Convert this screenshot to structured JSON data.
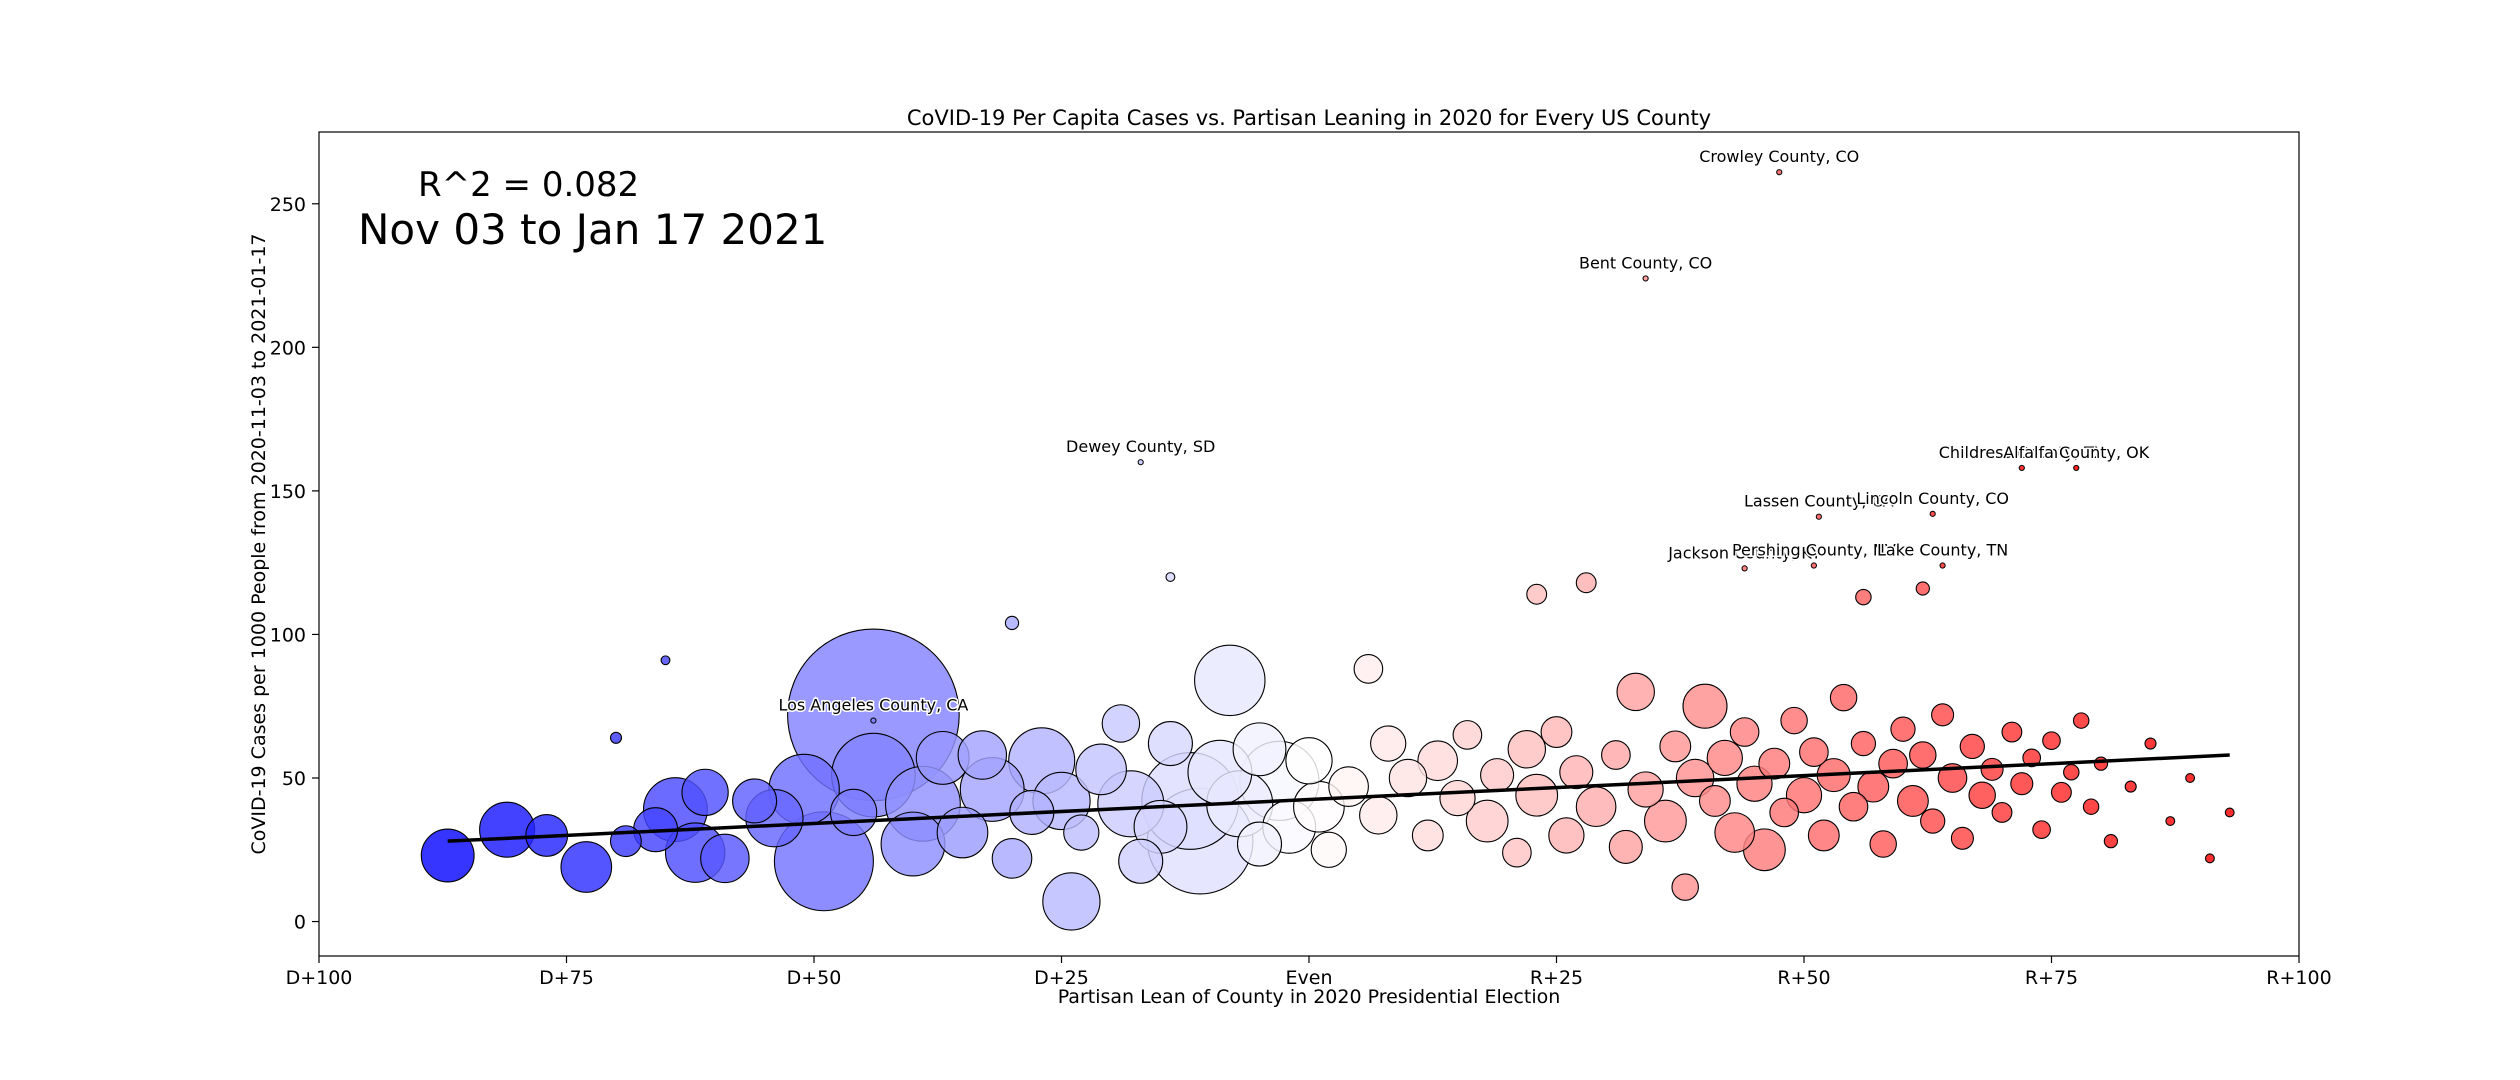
{
  "chart_data": {
    "type": "scatter",
    "title": "CoVID-19 Per Capita Cases vs. Partisan Leaning in 2020 for Every US County",
    "xlabel": "Partisan Lean of County in 2020 Presidential Election",
    "ylabel": "CoVID-19 Cases per 1000 People from 2020-11-03 to 2021-01-17",
    "xlim": [
      -100,
      100
    ],
    "ylim": [
      -12,
      275
    ],
    "x_ticks": [
      {
        "value": -100,
        "label": "D+100"
      },
      {
        "value": -75,
        "label": "D+75"
      },
      {
        "value": -50,
        "label": "D+50"
      },
      {
        "value": -25,
        "label": "D+25"
      },
      {
        "value": 0,
        "label": "Even"
      },
      {
        "value": 25,
        "label": "R+25"
      },
      {
        "value": 50,
        "label": "R+50"
      },
      {
        "value": 75,
        "label": "R+75"
      },
      {
        "value": 100,
        "label": "R+100"
      }
    ],
    "y_ticks": [
      0,
      50,
      100,
      150,
      200,
      250
    ],
    "grid": false,
    "r_squared_text": "R^2 = 0.082",
    "date_range_text": "Nov 03 to Jan 17 2021",
    "date_range_color": "#008000",
    "color_scale": {
      "democratic": "#0000ff",
      "even": "#ffffff",
      "republican": "#ff0000"
    },
    "trend_line": {
      "x": [
        -87,
        93
      ],
      "y": [
        28,
        58
      ],
      "color": "#000000"
    },
    "labeled_points": [
      {
        "label": "Crowley County, CO",
        "x": 47.5,
        "y": 261
      },
      {
        "label": "Bent County, CO",
        "x": 34,
        "y": 224
      },
      {
        "label": "Dewey County, SD",
        "x": -17,
        "y": 160
      },
      {
        "label": "Childress County, TX",
        "x": 72,
        "y": 158
      },
      {
        "label": "Alfalfa County, OK",
        "x": 77.5,
        "y": 158
      },
      {
        "label": "Lassen County, CA",
        "x": 51.5,
        "y": 141
      },
      {
        "label": "Lincoln County, CO",
        "x": 63,
        "y": 142
      },
      {
        "label": "Jackson County, KY",
        "x": 44,
        "y": 123
      },
      {
        "label": "Pershing County, NV",
        "x": 51,
        "y": 124
      },
      {
        "label": "Lake County, TN",
        "x": 64,
        "y": 124
      },
      {
        "label": "Los Angeles County, CA",
        "x": -44,
        "y": 70
      }
    ],
    "points": [
      {
        "x": -87,
        "y": 23,
        "s": 2.4
      },
      {
        "x": -81,
        "y": 32,
        "s": 2.5
      },
      {
        "x": -77,
        "y": 30,
        "s": 1.9
      },
      {
        "x": -73,
        "y": 19,
        "s": 2.3
      },
      {
        "x": -69,
        "y": 28,
        "s": 1.4
      },
      {
        "x": -66,
        "y": 32,
        "s": 2.0
      },
      {
        "x": -64,
        "y": 39,
        "s": 2.9
      },
      {
        "x": -61,
        "y": 45,
        "s": 2.1
      },
      {
        "x": -62,
        "y": 24,
        "s": 2.7
      },
      {
        "x": -59,
        "y": 22,
        "s": 2.2
      },
      {
        "x": -56,
        "y": 42,
        "s": 2.0
      },
      {
        "x": -54,
        "y": 36,
        "s": 2.6
      },
      {
        "x": -51,
        "y": 46,
        "s": 3.2
      },
      {
        "x": -49,
        "y": 21,
        "s": 4.5
      },
      {
        "x": -46,
        "y": 38,
        "s": 2.1
      },
      {
        "x": -44,
        "y": 51,
        "s": 3.8
      },
      {
        "x": -44,
        "y": 72,
        "s": 7.8
      },
      {
        "x": -40,
        "y": 27,
        "s": 2.9
      },
      {
        "x": -39,
        "y": 41,
        "s": 3.4
      },
      {
        "x": -37,
        "y": 57,
        "s": 2.4
      },
      {
        "x": -35,
        "y": 31,
        "s": 2.3
      },
      {
        "x": -33,
        "y": 58,
        "s": 2.2
      },
      {
        "x": -32,
        "y": 46,
        "s": 2.9
      },
      {
        "x": -30,
        "y": 22,
        "s": 1.8
      },
      {
        "x": -28,
        "y": 38,
        "s": 2.0
      },
      {
        "x": -27,
        "y": 56,
        "s": 3.0
      },
      {
        "x": -25,
        "y": 42,
        "s": 2.6
      },
      {
        "x": -24,
        "y": 7,
        "s": 2.6
      },
      {
        "x": -23,
        "y": 31,
        "s": 1.6
      },
      {
        "x": -21,
        "y": 53,
        "s": 2.3
      },
      {
        "x": -19,
        "y": 69,
        "s": 1.7
      },
      {
        "x": -18,
        "y": 41,
        "s": 3.0
      },
      {
        "x": -17,
        "y": 21,
        "s": 2.0
      },
      {
        "x": -15,
        "y": 33,
        "s": 2.4
      },
      {
        "x": -14,
        "y": 62,
        "s": 2.0
      },
      {
        "x": -12,
        "y": 42,
        "s": 4.4
      },
      {
        "x": -11,
        "y": 28,
        "s": 4.8
      },
      {
        "x": -9,
        "y": 52,
        "s": 2.9
      },
      {
        "x": -8,
        "y": 84,
        "s": 3.2
      },
      {
        "x": -7,
        "y": 41,
        "s": 3.0
      },
      {
        "x": -5,
        "y": 60,
        "s": 2.4
      },
      {
        "x": -5,
        "y": 27,
        "s": 2.0
      },
      {
        "x": -3,
        "y": 49,
        "s": 3.6
      },
      {
        "x": -2,
        "y": 33,
        "s": 2.4
      },
      {
        "x": 0,
        "y": 56,
        "s": 2.1
      },
      {
        "x": 1,
        "y": 40,
        "s": 2.3
      },
      {
        "x": 2,
        "y": 25,
        "s": 1.6
      },
      {
        "x": 4,
        "y": 47,
        "s": 1.8
      },
      {
        "x": 6,
        "y": 88,
        "s": 1.3
      },
      {
        "x": 7,
        "y": 37,
        "s": 1.7
      },
      {
        "x": 8,
        "y": 62,
        "s": 1.6
      },
      {
        "x": 10,
        "y": 50,
        "s": 1.7
      },
      {
        "x": 12,
        "y": 30,
        "s": 1.4
      },
      {
        "x": 13,
        "y": 56,
        "s": 1.8
      },
      {
        "x": 15,
        "y": 43,
        "s": 1.6
      },
      {
        "x": 16,
        "y": 65,
        "s": 1.3
      },
      {
        "x": 18,
        "y": 35,
        "s": 1.9
      },
      {
        "x": 19,
        "y": 51,
        "s": 1.5
      },
      {
        "x": 21,
        "y": 24,
        "s": 1.3
      },
      {
        "x": 22,
        "y": 60,
        "s": 1.7
      },
      {
        "x": 23,
        "y": 44,
        "s": 1.9
      },
      {
        "x": 25,
        "y": 66,
        "s": 1.4
      },
      {
        "x": 26,
        "y": 30,
        "s": 1.6
      },
      {
        "x": 27,
        "y": 52,
        "s": 1.5
      },
      {
        "x": 29,
        "y": 40,
        "s": 1.8
      },
      {
        "x": 31,
        "y": 58,
        "s": 1.3
      },
      {
        "x": 32,
        "y": 26,
        "s": 1.5
      },
      {
        "x": 33,
        "y": 80,
        "s": 1.7
      },
      {
        "x": 34,
        "y": 46,
        "s": 1.6
      },
      {
        "x": 36,
        "y": 35,
        "s": 1.9
      },
      {
        "x": 37,
        "y": 61,
        "s": 1.4
      },
      {
        "x": 38,
        "y": 12,
        "s": 1.2
      },
      {
        "x": 39,
        "y": 50,
        "s": 1.7
      },
      {
        "x": 40,
        "y": 75,
        "s": 2.0
      },
      {
        "x": 41,
        "y": 42,
        "s": 1.4
      },
      {
        "x": 42,
        "y": 57,
        "s": 1.6
      },
      {
        "x": 43,
        "y": 31,
        "s": 1.8
      },
      {
        "x": 44,
        "y": 66,
        "s": 1.3
      },
      {
        "x": 45,
        "y": 48,
        "s": 1.6
      },
      {
        "x": 46,
        "y": 25,
        "s": 1.9
      },
      {
        "x": 47,
        "y": 55,
        "s": 1.4
      },
      {
        "x": 48,
        "y": 38,
        "s": 1.3
      },
      {
        "x": 49,
        "y": 70,
        "s": 1.2
      },
      {
        "x": 50,
        "y": 44,
        "s": 1.6
      },
      {
        "x": 51,
        "y": 59,
        "s": 1.3
      },
      {
        "x": 52,
        "y": 30,
        "s": 1.4
      },
      {
        "x": 53,
        "y": 51,
        "s": 1.5
      },
      {
        "x": 54,
        "y": 78,
        "s": 1.2
      },
      {
        "x": 55,
        "y": 40,
        "s": 1.3
      },
      {
        "x": 56,
        "y": 62,
        "s": 1.1
      },
      {
        "x": 57,
        "y": 47,
        "s": 1.4
      },
      {
        "x": 58,
        "y": 27,
        "s": 1.2
      },
      {
        "x": 59,
        "y": 55,
        "s": 1.3
      },
      {
        "x": 60,
        "y": 67,
        "s": 1.1
      },
      {
        "x": 61,
        "y": 42,
        "s": 1.4
      },
      {
        "x": 62,
        "y": 58,
        "s": 1.2
      },
      {
        "x": 63,
        "y": 35,
        "s": 1.1
      },
      {
        "x": 64,
        "y": 72,
        "s": 1.0
      },
      {
        "x": 65,
        "y": 50,
        "s": 1.3
      },
      {
        "x": 66,
        "y": 29,
        "s": 1.0
      },
      {
        "x": 67,
        "y": 61,
        "s": 1.1
      },
      {
        "x": 68,
        "y": 44,
        "s": 1.2
      },
      {
        "x": 69,
        "y": 53,
        "s": 1.0
      },
      {
        "x": 70,
        "y": 38,
        "s": 0.9
      },
      {
        "x": 71,
        "y": 66,
        "s": 0.9
      },
      {
        "x": 72,
        "y": 48,
        "s": 1.0
      },
      {
        "x": 73,
        "y": 57,
        "s": 0.8
      },
      {
        "x": 74,
        "y": 32,
        "s": 0.8
      },
      {
        "x": 75,
        "y": 63,
        "s": 0.8
      },
      {
        "x": 76,
        "y": 45,
        "s": 0.9
      },
      {
        "x": 77,
        "y": 52,
        "s": 0.7
      },
      {
        "x": 78,
        "y": 70,
        "s": 0.7
      },
      {
        "x": 79,
        "y": 40,
        "s": 0.7
      },
      {
        "x": 80,
        "y": 55,
        "s": 0.6
      },
      {
        "x": 81,
        "y": 28,
        "s": 0.6
      },
      {
        "x": 83,
        "y": 47,
        "s": 0.5
      },
      {
        "x": 85,
        "y": 62,
        "s": 0.5
      },
      {
        "x": 87,
        "y": 35,
        "s": 0.4
      },
      {
        "x": 89,
        "y": 50,
        "s": 0.4
      },
      {
        "x": 91,
        "y": 22,
        "s": 0.4
      },
      {
        "x": 93,
        "y": 38,
        "s": 0.4
      },
      {
        "x": -70,
        "y": 64,
        "s": 0.5
      },
      {
        "x": -65,
        "y": 91,
        "s": 0.4
      },
      {
        "x": -30,
        "y": 104,
        "s": 0.6
      },
      {
        "x": -14,
        "y": 120,
        "s": 0.4
      },
      {
        "x": 23,
        "y": 114,
        "s": 0.9
      },
      {
        "x": 28,
        "y": 118,
        "s": 0.9
      },
      {
        "x": 56,
        "y": 113,
        "s": 0.7
      },
      {
        "x": 62,
        "y": 116,
        "s": 0.6
      }
    ]
  }
}
